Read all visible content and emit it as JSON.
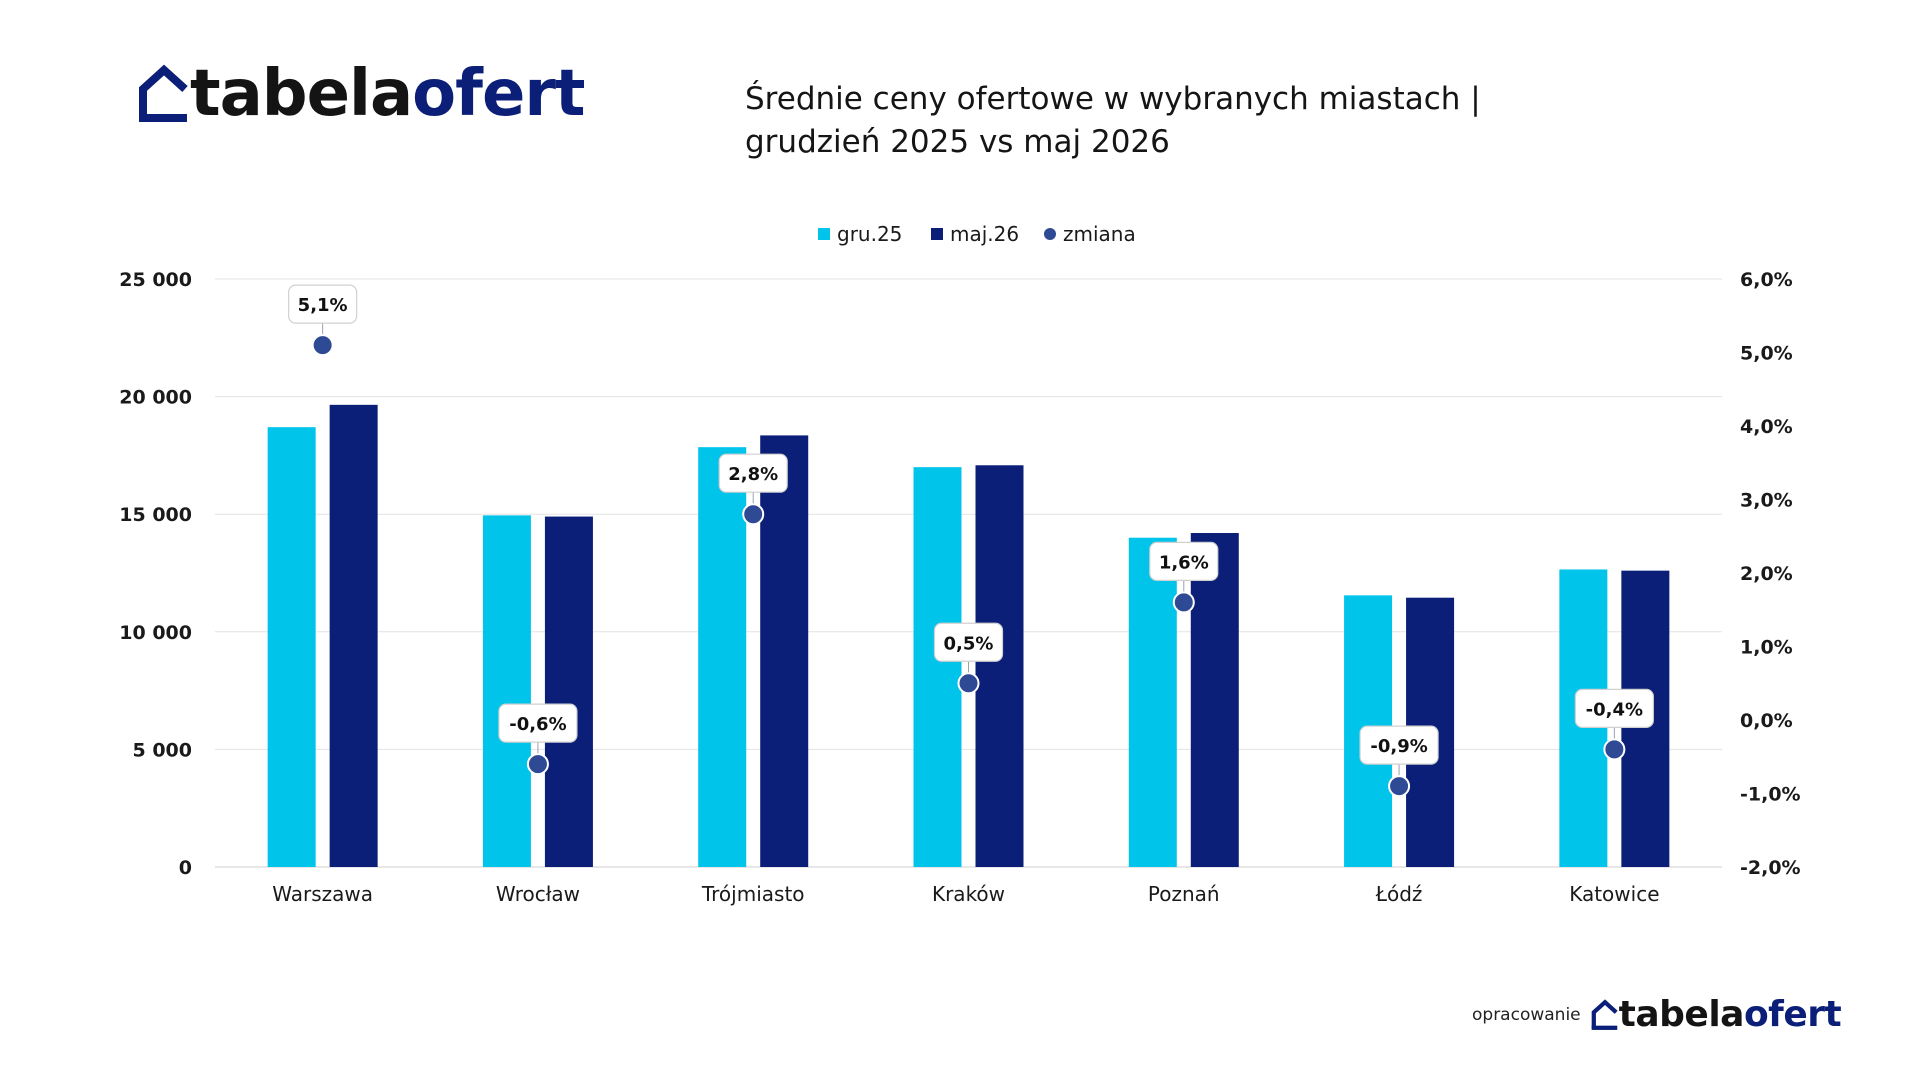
{
  "logo": {
    "part_a": "tabela",
    "part_b": "ofert"
  },
  "title": {
    "line1": "Średnie ceny ofertowe w wybranych miastach |",
    "line2": "grudzień 2025 vs maj 2026"
  },
  "credit": {
    "label": "opracowanie",
    "part_a": "tabela",
    "part_b": "ofert"
  },
  "colors": {
    "gru": "#00c4ea",
    "maj": "#0b1f78",
    "zmiana": "#2e4a94",
    "grid": "#e3e3e3"
  },
  "chart_data": {
    "type": "bar",
    "categories": [
      "Warszawa",
      "Wrocław",
      "Trójmiasto",
      "Kraków",
      "Poznań",
      "Łódź",
      "Katowice"
    ],
    "series": [
      {
        "name": "gru.25",
        "kind": "bar",
        "axis": "left",
        "values": [
          18700,
          14950,
          17850,
          17000,
          14000,
          11550,
          12650
        ]
      },
      {
        "name": "maj.26",
        "kind": "bar",
        "axis": "left",
        "values": [
          19650,
          14900,
          18350,
          17080,
          14200,
          11450,
          12600
        ]
      },
      {
        "name": "zmiana",
        "kind": "scatter",
        "axis": "right",
        "values": [
          5.1,
          -0.6,
          2.8,
          0.5,
          1.6,
          -0.9,
          -0.4
        ],
        "labels": [
          "5,1%",
          "-0,6%",
          "2,8%",
          "0,5%",
          "1,6%",
          "-0,9%",
          "-0,4%"
        ]
      }
    ],
    "y_left": {
      "min": 0,
      "max": 25000,
      "ticks": [
        0,
        5000,
        10000,
        15000,
        20000,
        25000
      ],
      "tick_labels": [
        "0",
        "5 000",
        "10 000",
        "15 000",
        "20 000",
        "25 000"
      ]
    },
    "y_right": {
      "min": -2,
      "max": 6,
      "ticks": [
        -2,
        -1,
        0,
        1,
        2,
        3,
        4,
        5,
        6
      ],
      "tick_labels": [
        "-2,0%",
        "-1,0%",
        "0,0%",
        "1,0%",
        "2,0%",
        "3,0%",
        "4,0%",
        "5,0%",
        "6,0%"
      ]
    },
    "grid": true,
    "legend_position": "top-center"
  }
}
